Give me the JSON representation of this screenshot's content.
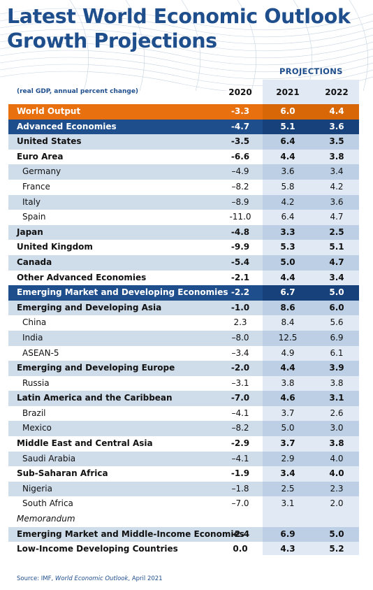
{
  "title_line1": "Latest World Economic Outlook",
  "title_line2": "Growth Projections",
  "projections_label": "PROJECTIONS",
  "note": "(real GDP, annual percent change)",
  "years": [
    "2020",
    "2021",
    "2022"
  ],
  "rows": [
    {
      "label": "World Output",
      "v": [
        "-3.3",
        "6.0",
        "4.4"
      ],
      "style": "orange"
    },
    {
      "label": "Advanced Economies",
      "v": [
        "-4.7",
        "5.1",
        "3.6"
      ],
      "style": "blue"
    },
    {
      "label": "United States",
      "v": [
        "-3.5",
        "6.4",
        "3.5"
      ],
      "style": "shade bold"
    },
    {
      "label": "Euro Area",
      "v": [
        "-6.6",
        "4.4",
        "3.8"
      ],
      "style": "bold"
    },
    {
      "label": "Germany",
      "v": [
        "–4.9",
        "3.6",
        "3.4"
      ],
      "style": "shade sub"
    },
    {
      "label": "France",
      "v": [
        "–8.2",
        "5.8",
        "4.2"
      ],
      "style": "sub"
    },
    {
      "label": "Italy",
      "v": [
        "–8.9",
        "4.2",
        "3.6"
      ],
      "style": "shade sub"
    },
    {
      "label": "Spain",
      "v": [
        "-11.0",
        "6.4",
        "4.7"
      ],
      "style": "sub"
    },
    {
      "label": "Japan",
      "v": [
        "-4.8",
        "3.3",
        "2.5"
      ],
      "style": "shade bold"
    },
    {
      "label": "United Kingdom",
      "v": [
        "-9.9",
        "5.3",
        "5.1"
      ],
      "style": "bold"
    },
    {
      "label": "Canada",
      "v": [
        "-5.4",
        "5.0",
        "4.7"
      ],
      "style": "shade bold"
    },
    {
      "label": "Other Advanced Economies",
      "v": [
        "-2.1",
        "4.4",
        "3.4"
      ],
      "style": "bold"
    },
    {
      "label": "Emerging Market and Developing Economies",
      "v": [
        "-2.2",
        "6.7",
        "5.0"
      ],
      "style": "blue"
    },
    {
      "label": "Emerging and Developing Asia",
      "v": [
        "-1.0",
        "8.6",
        "6.0"
      ],
      "style": "shade bold"
    },
    {
      "label": "China",
      "v": [
        "2.3",
        "8.4",
        "5.6"
      ],
      "style": "sub"
    },
    {
      "label": "India",
      "v": [
        "–8.0",
        "12.5",
        "6.9"
      ],
      "style": "shade sub"
    },
    {
      "label": "ASEAN-5",
      "v": [
        "–3.4",
        "4.9",
        "6.1"
      ],
      "style": "sub"
    },
    {
      "label": "Emerging and Developing Europe",
      "v": [
        "-2.0",
        "4.4",
        "3.9"
      ],
      "style": "shade bold"
    },
    {
      "label": "Russia",
      "v": [
        "–3.1",
        "3.8",
        "3.8"
      ],
      "style": "sub"
    },
    {
      "label": "Latin America and the Caribbean",
      "v": [
        "-7.0",
        "4.6",
        "3.1"
      ],
      "style": "shade bold"
    },
    {
      "label": "Brazil",
      "v": [
        "–4.1",
        "3.7",
        "2.6"
      ],
      "style": "sub"
    },
    {
      "label": "Mexico",
      "v": [
        "–8.2",
        "5.0",
        "3.0"
      ],
      "style": "shade sub"
    },
    {
      "label": "Middle East and Central Asia",
      "v": [
        "-2.9",
        "3.7",
        "3.8"
      ],
      "style": "bold"
    },
    {
      "label": "Saudi Arabia",
      "v": [
        "–4.1",
        "2.9",
        "4.0"
      ],
      "style": "shade sub"
    },
    {
      "label": "Sub-Saharan Africa",
      "v": [
        "-1.9",
        "3.4",
        "4.0"
      ],
      "style": "bold"
    },
    {
      "label": "Nigeria",
      "v": [
        "–1.8",
        "2.5",
        "2.3"
      ],
      "style": "shade sub"
    },
    {
      "label": "South Africa",
      "v": [
        "–7.0",
        "3.1",
        "2.0"
      ],
      "style": "sub"
    },
    {
      "label": "Memorandum",
      "v": [
        "",
        "",
        ""
      ],
      "style": "italic"
    },
    {
      "label": "Emerging Market and Middle-Income Economies",
      "v": [
        "-2.4",
        "6.9",
        "5.0"
      ],
      "style": "shade bold"
    },
    {
      "label": "Low-Income Developing Countries",
      "v": [
        "0.0",
        "4.3",
        "5.2"
      ],
      "style": "bold"
    }
  ],
  "source_prefix": "Source: IMF, ",
  "source_title": "World Economic Outlook",
  "source_suffix": ", April 2021",
  "colors": {
    "brand_blue": "#1f4e8c",
    "orange": "#e8700f",
    "shade": "#cfdcea",
    "proj_col": "#e1eaf4"
  }
}
